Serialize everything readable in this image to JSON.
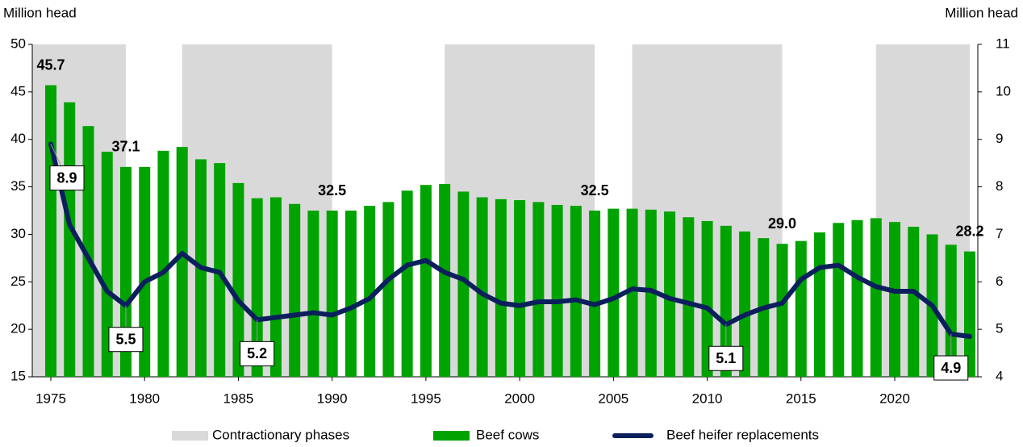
{
  "chart_data": {
    "type": "bar-line",
    "y_label": "Million head",
    "y2_label": "Million head",
    "categories": [
      "1975",
      null,
      null,
      null,
      null,
      "1980",
      null,
      null,
      null,
      null,
      "1985",
      null,
      null,
      null,
      null,
      "1990",
      null,
      null,
      null,
      null,
      "1995",
      null,
      null,
      null,
      null,
      "2000",
      null,
      null,
      null,
      null,
      "2005",
      null,
      null,
      null,
      null,
      "2010",
      null,
      null,
      null,
      null,
      "2015",
      null,
      null,
      null,
      null,
      "2020",
      null,
      null,
      null,
      null
    ],
    "x_start": 1975,
    "phases": {
      "name": "Contractionary phases",
      "color": "#d9d9d9",
      "spans": [
        [
          1974,
          1979
        ],
        [
          1982,
          1990
        ],
        [
          1996,
          2004
        ],
        [
          2006,
          2014
        ],
        [
          2019,
          2024
        ]
      ]
    },
    "series": [
      {
        "name": "Beef cows",
        "color": "#00a300",
        "kind": "bar",
        "axis": "y",
        "values": [
          45.7,
          43.9,
          41.4,
          38.7,
          37.1,
          37.1,
          38.8,
          39.2,
          37.9,
          37.5,
          35.4,
          33.8,
          33.9,
          33.2,
          32.5,
          32.5,
          32.5,
          33.0,
          33.4,
          34.6,
          35.2,
          35.3,
          34.5,
          33.9,
          33.7,
          33.6,
          33.4,
          33.1,
          33.0,
          32.5,
          32.7,
          32.7,
          32.6,
          32.4,
          31.8,
          31.4,
          30.9,
          30.3,
          29.6,
          29.0,
          29.3,
          30.2,
          31.2,
          31.5,
          31.7,
          31.3,
          30.8,
          30.0,
          28.9,
          28.2
        ],
        "value_labels": [
          "45.7",
          null,
          null,
          null,
          "37.1",
          null,
          null,
          null,
          null,
          null,
          null,
          null,
          null,
          null,
          null,
          "32.5",
          null,
          null,
          null,
          null,
          null,
          null,
          null,
          null,
          null,
          null,
          null,
          null,
          null,
          "32.5",
          null,
          null,
          null,
          null,
          null,
          null,
          null,
          null,
          null,
          "29.0",
          null,
          null,
          null,
          null,
          null,
          null,
          null,
          null,
          null,
          "28.2"
        ]
      },
      {
        "name": "Beef heifer replacements",
        "color": "#0a1f5c",
        "kind": "line",
        "axis": "y2",
        "values": [
          8.9,
          7.2,
          6.5,
          5.8,
          5.5,
          6.0,
          6.2,
          6.6,
          6.3,
          6.2,
          5.6,
          5.2,
          5.25,
          5.3,
          5.35,
          5.3,
          5.45,
          5.65,
          6.05,
          6.35,
          6.45,
          6.2,
          6.05,
          5.75,
          5.55,
          5.5,
          5.58,
          5.58,
          5.62,
          5.52,
          5.65,
          5.85,
          5.82,
          5.65,
          5.55,
          5.45,
          5.1,
          5.3,
          5.45,
          5.55,
          6.05,
          6.3,
          6.35,
          6.1,
          5.9,
          5.8,
          5.8,
          5.5,
          4.9,
          4.85
        ],
        "value_labels": [
          "8.9",
          null,
          null,
          null,
          "5.5",
          null,
          null,
          null,
          null,
          null,
          null,
          "5.2",
          null,
          null,
          null,
          null,
          null,
          null,
          null,
          null,
          null,
          null,
          null,
          null,
          null,
          null,
          null,
          null,
          null,
          null,
          null,
          null,
          null,
          null,
          null,
          null,
          "5.1",
          null,
          null,
          null,
          null,
          null,
          null,
          null,
          null,
          null,
          null,
          null,
          "4.9",
          null
        ]
      }
    ],
    "ylim": [
      15,
      50
    ],
    "yticks": [
      15,
      20,
      25,
      30,
      35,
      40,
      45,
      50
    ],
    "y2lim": [
      4,
      11
    ],
    "y2ticks": [
      4,
      5,
      6,
      7,
      8,
      9,
      10,
      11
    ]
  }
}
